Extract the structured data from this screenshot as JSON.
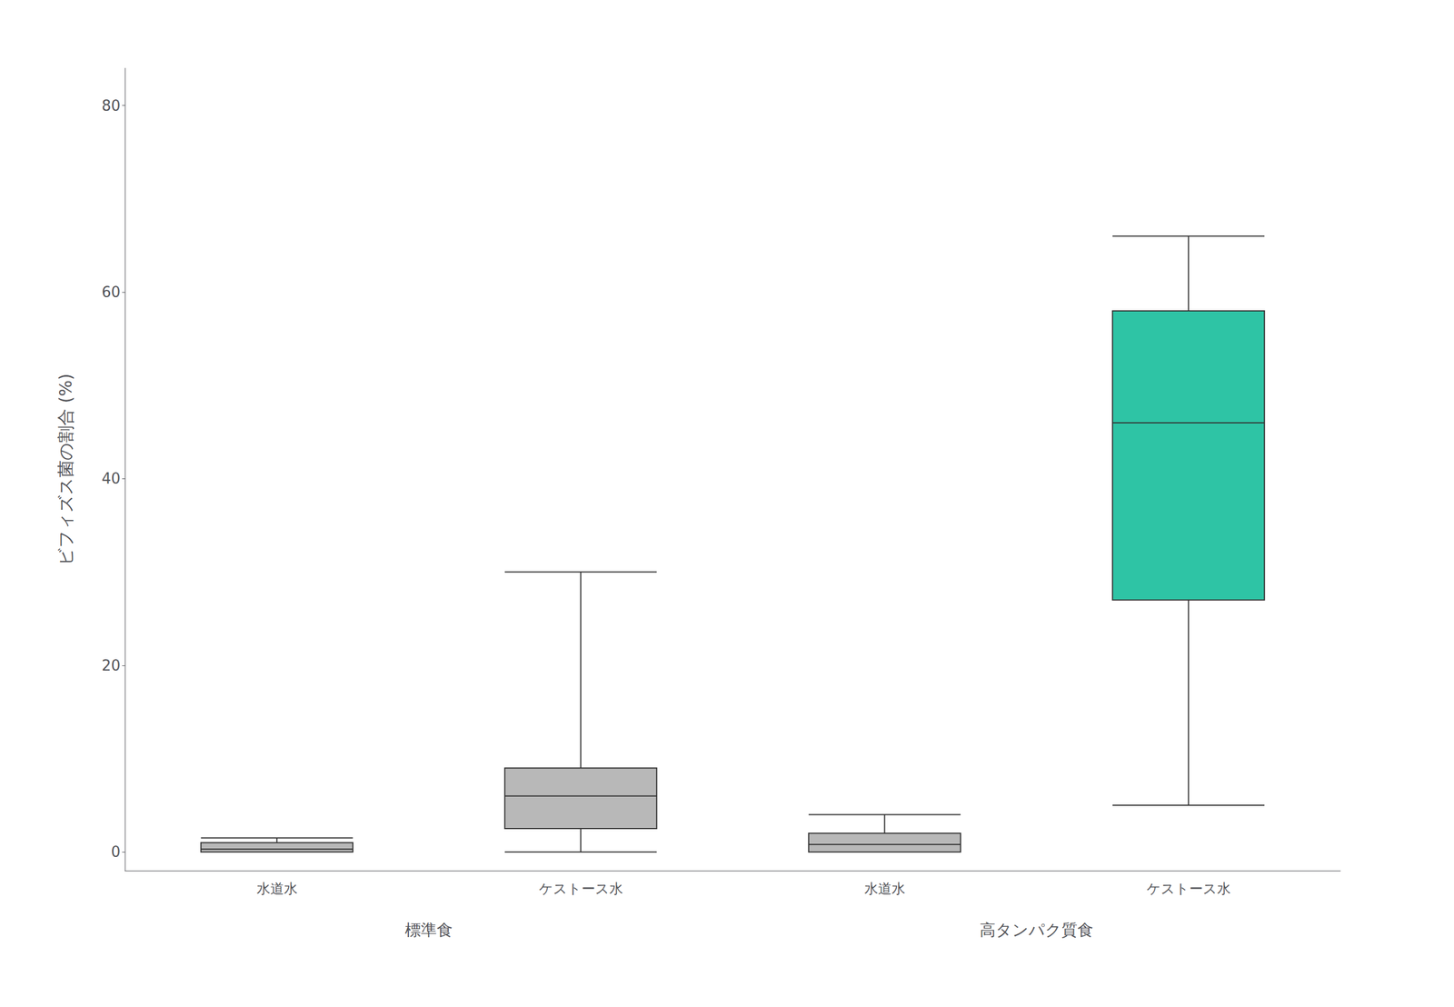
{
  "chart_data": {
    "type": "boxplot",
    "ylabel": "ビフィズス菌の割合 (%)",
    "groups": [
      {
        "label": "標準食",
        "categories": [
          "水道水",
          "ケストース水"
        ]
      },
      {
        "label": "高タンパク質食",
        "categories": [
          "水道水",
          "ケストース水"
        ]
      }
    ],
    "values": [
      [
        0.0,
        0.0,
        0.3,
        1.0,
        1.5
      ],
      [
        0.0,
        2.5,
        6.0,
        9.0,
        30.0
      ],
      [
        0.0,
        0.0,
        0.8,
        2.0,
        4.0
      ],
      [
        5.0,
        27.0,
        46.0,
        58.0,
        66.0
      ]
    ],
    "colors": [
      "#b8b8b8",
      "#b8b8b8",
      "#b8b8b8",
      "#2ec4a5"
    ],
    "ylim": [
      -2,
      84
    ],
    "yticks": [
      0,
      20,
      40,
      60,
      80
    ],
    "grid": false
  }
}
